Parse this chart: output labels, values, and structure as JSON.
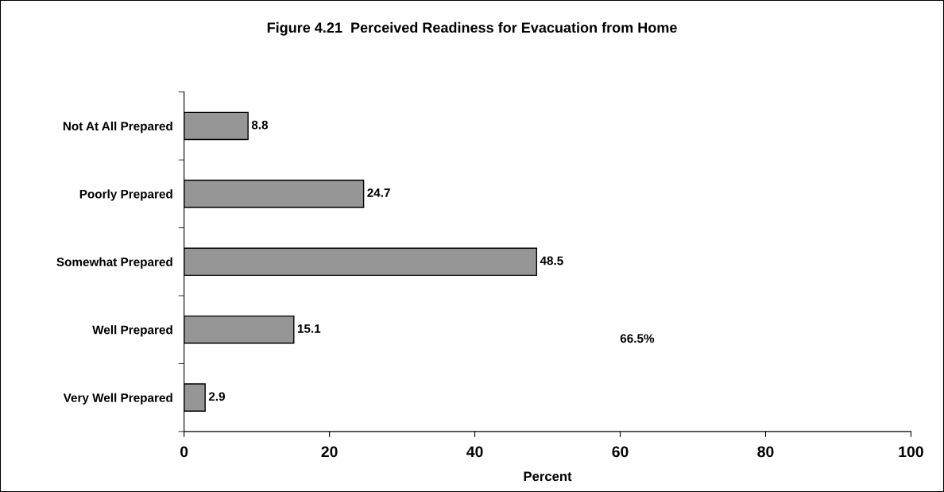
{
  "chart_data": {
    "type": "bar",
    "orientation": "horizontal",
    "title": "Figure 4.21  Perceived Readiness for Evacuation from Home",
    "xlabel": "Percent",
    "categories": [
      "Not At All Prepared",
      "Poorly Prepared",
      "Somewhat Prepared",
      "Well Prepared",
      "Very Well Prepared"
    ],
    "values": [
      8.8,
      24.7,
      48.5,
      15.1,
      2.9
    ],
    "color": "#969696",
    "xlim": [
      0,
      100
    ],
    "xticks": [
      0,
      20,
      40,
      60,
      80,
      100
    ],
    "data_labels": true,
    "grid": false,
    "legend": false,
    "annotations": [
      "66.5%"
    ]
  }
}
